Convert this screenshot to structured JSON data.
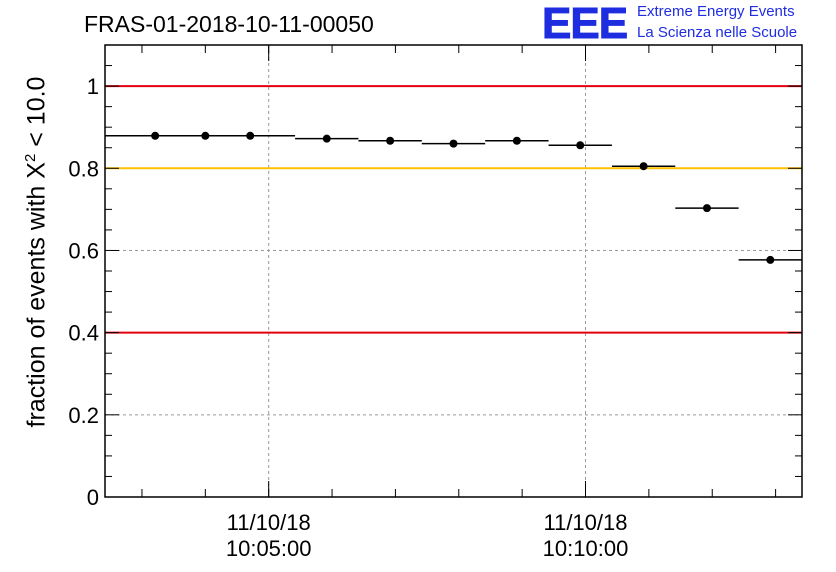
{
  "title": "FRAS-01-2018-10-11-00050",
  "logo": {
    "mark": "EEE",
    "line1": "Extreme Energy Events",
    "line2": "La Scienza nelle Scuole",
    "color": "#1f2de0"
  },
  "chart_data": {
    "type": "scatter",
    "ylabel_prefix": "fraction of events with",
    "ylabel_symbol": "X",
    "ylabel_sup": "2",
    "ylabel_suffix": " < 10.0",
    "ylim": [
      0,
      1.1
    ],
    "yticks": [
      0,
      0.2,
      0.4,
      0.6,
      0.8,
      1
    ],
    "ytick_labels": [
      "0",
      "0.2",
      "0.4",
      "0.6",
      "0.8",
      "1"
    ],
    "xlim": [
      "10:02:25",
      "10:13:25"
    ],
    "xticks": [
      {
        "time": "10:05:00",
        "date_label": "11/10/18",
        "time_label": "10:05:00"
      },
      {
        "time": "10:10:00",
        "date_label": "11/10/18",
        "time_label": "10:10:00"
      }
    ],
    "grid": true,
    "reference_lines": [
      {
        "y": 1.0,
        "color": "#e3000f"
      },
      {
        "y": 0.8,
        "color": "#ffc200"
      },
      {
        "y": 0.4,
        "color": "#e3000f"
      }
    ],
    "points": [
      {
        "x_start": "10:02:25",
        "x_end": "10:04:00",
        "y": 0.879
      },
      {
        "x_start": "10:04:00",
        "x_end": "10:04:00",
        "y": 0.879
      },
      {
        "x_start": "10:04:00",
        "x_end": "10:05:25",
        "y": 0.879
      },
      {
        "x_start": "10:05:25",
        "x_end": "10:06:25",
        "y": 0.872
      },
      {
        "x_start": "10:06:25",
        "x_end": "10:07:25",
        "y": 0.867
      },
      {
        "x_start": "10:07:25",
        "x_end": "10:08:25",
        "y": 0.86
      },
      {
        "x_start": "10:08:25",
        "x_end": "10:09:25",
        "y": 0.867
      },
      {
        "x_start": "10:09:25",
        "x_end": "10:10:25",
        "y": 0.856
      },
      {
        "x_start": "10:10:25",
        "x_end": "10:11:25",
        "y": 0.805
      },
      {
        "x_start": "10:11:25",
        "x_end": "10:12:25",
        "y": 0.703
      },
      {
        "x_start": "10:12:25",
        "x_end": "10:13:25",
        "y": 0.577
      }
    ],
    "y_errors": [
      0.004,
      0.004,
      0.004,
      0.004,
      0.004,
      0.004,
      0.004,
      0.004,
      0.006,
      0.009,
      0.007
    ]
  }
}
